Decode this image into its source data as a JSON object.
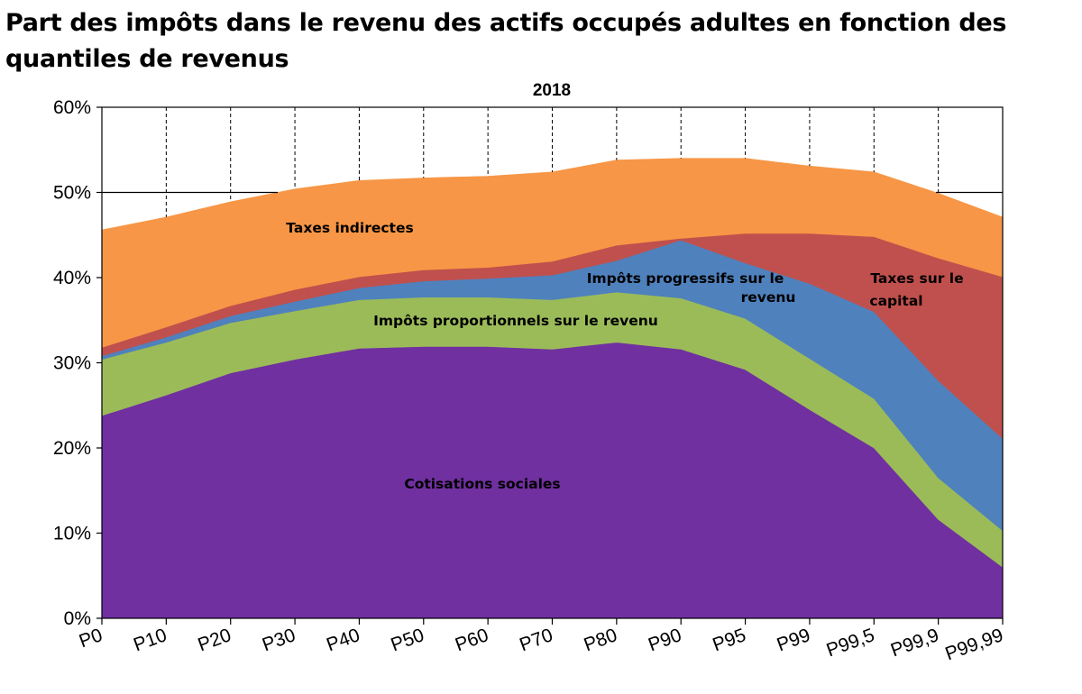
{
  "title": "Part des impôts dans le revenu des actifs occupés adultes en fonction des quantiles de revenus",
  "chart_data": {
    "type": "area",
    "stacked": true,
    "subtitle": "2018",
    "categories": [
      "P0",
      "P10",
      "P20",
      "P30",
      "P40",
      "P50",
      "P60",
      "P70",
      "P80",
      "P90",
      "P95",
      "P99",
      "P99,5",
      "P99,9",
      "P99,99"
    ],
    "ylim": [
      0,
      60
    ],
    "yticks": [
      "0%",
      "10%",
      "20%",
      "30%",
      "40%",
      "50%",
      "60%"
    ],
    "grid": "solid horizontal at 50% and 60%, dashed vertical above the stacked areas",
    "series": [
      {
        "name": "Cotisations sociales",
        "color": "#7030A0",
        "label_color": "#000000",
        "values": [
          23.8,
          26.2,
          28.8,
          30.4,
          31.7,
          31.9,
          31.9,
          31.6,
          32.4,
          31.6,
          29.2,
          24.5,
          20.0,
          11.6,
          6.0
        ]
      },
      {
        "name": "Impôts proportionnels sur le revenu",
        "color": "#9BBB59",
        "label_color": "#000000",
        "values": [
          6.6,
          6.2,
          5.9,
          5.7,
          5.7,
          5.8,
          5.8,
          5.8,
          5.9,
          6.0,
          6.0,
          6.0,
          5.8,
          4.9,
          4.3
        ]
      },
      {
        "name": "Impôts progressifs sur le revenu",
        "color": "#4F81BD",
        "label_color": "#000000",
        "values": [
          0.4,
          0.6,
          0.8,
          1.1,
          1.4,
          1.9,
          2.2,
          2.9,
          3.7,
          6.8,
          6.5,
          8.8,
          10.2,
          11.4,
          10.8
        ]
      },
      {
        "name": "Taxes sur le capital",
        "color": "#C0504D",
        "label_color": "#000000",
        "values": [
          1.0,
          1.2,
          1.2,
          1.4,
          1.3,
          1.3,
          1.3,
          1.6,
          1.8,
          0.2,
          3.5,
          5.9,
          8.8,
          14.4,
          19.0
        ]
      },
      {
        "name": "Taxes indirectes",
        "color": "#F79646",
        "label_color": "#000000",
        "values": [
          13.8,
          12.9,
          12.2,
          11.8,
          11.3,
          10.8,
          10.7,
          10.5,
          10.0,
          9.4,
          8.8,
          7.9,
          7.6,
          7.6,
          7.0
        ]
      }
    ],
    "labels": {
      "taxes_indirectes": "Taxes indirectes",
      "proportionnels": "Impôts proportionnels sur le revenu",
      "progressifs_1": "Impôts progressifs sur le",
      "progressifs_2": "revenu",
      "capital_1": "Taxes sur le",
      "capital_2": "capital",
      "cotisations": "Cotisations sociales"
    }
  }
}
